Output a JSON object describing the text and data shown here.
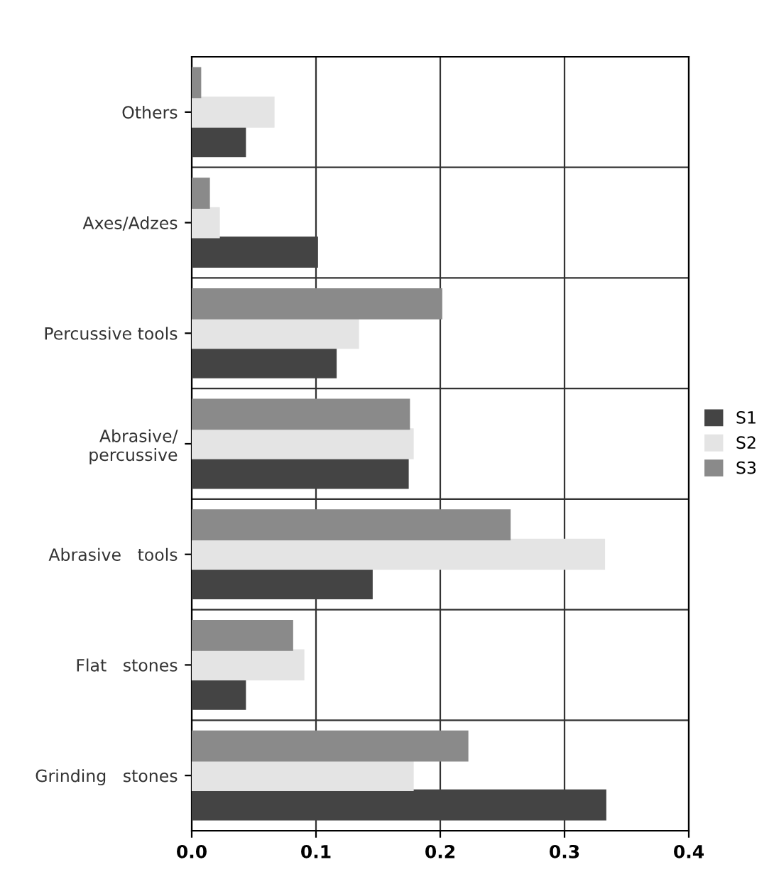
{
  "chart_data": {
    "type": "bar",
    "orientation": "horizontal",
    "categories": [
      "Others",
      "Axes/Adzes",
      "Percussive tools",
      "Abrasive/\npercussive",
      "Abrasive   tools",
      "Flat   stones",
      "Grinding   stones"
    ],
    "series": [
      {
        "name": "S1",
        "color": "#444444",
        "values": [
          0.043,
          0.101,
          0.116,
          0.174,
          0.145,
          0.043,
          0.333
        ]
      },
      {
        "name": "S2",
        "color": "#e4e4e4",
        "values": [
          0.066,
          0.022,
          0.134,
          0.178,
          0.332,
          0.09,
          0.178
        ]
      },
      {
        "name": "S3",
        "color": "#8a8a8a",
        "values": [
          0.007,
          0.014,
          0.201,
          0.175,
          0.256,
          0.081,
          0.222
        ]
      }
    ],
    "xlim": [
      0,
      0.4
    ],
    "xticks": [
      {
        "value": 0,
        "label": "0.0"
      },
      0.1,
      0.2,
      0.3,
      0.4
    ],
    "grid": true,
    "legend": "right"
  }
}
